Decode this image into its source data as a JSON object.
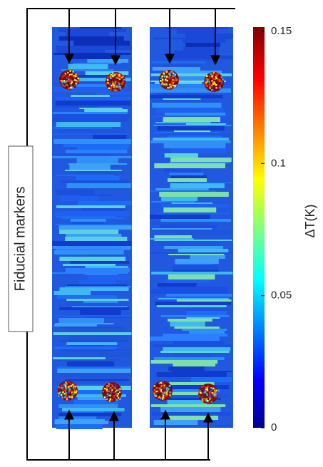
{
  "label": "Fiducial markers",
  "colorbar": {
    "title": "ΔT(K)",
    "lim": [
      0,
      0.15
    ],
    "ticks": [
      0,
      0.05,
      0.1,
      0.15
    ]
  }
}
